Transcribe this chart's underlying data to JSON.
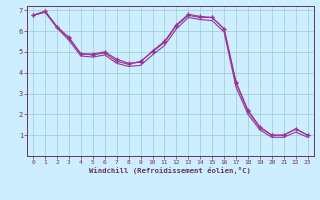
{
  "xlabel": "Windchill (Refroidissement éolien,°C)",
  "bg_color": "#cceeff",
  "line_color": "#993399",
  "grid_color": "#99cccc",
  "axis_color": "#663366",
  "spine_color": "#663366",
  "xlim": [
    -0.5,
    23.5
  ],
  "ylim": [
    0,
    7.2
  ],
  "xticks": [
    0,
    1,
    2,
    3,
    4,
    5,
    6,
    7,
    8,
    9,
    10,
    11,
    12,
    13,
    14,
    15,
    16,
    17,
    18,
    19,
    20,
    21,
    22,
    23
  ],
  "yticks": [
    1,
    2,
    3,
    4,
    5,
    6,
    7
  ],
  "line1_x": [
    0,
    1,
    2,
    3,
    4,
    5,
    6,
    7,
    8,
    9,
    10,
    11,
    12,
    13,
    14,
    15,
    16,
    17,
    18,
    19,
    20,
    21,
    22,
    23
  ],
  "line1_y": [
    6.75,
    6.95,
    6.2,
    5.65,
    4.9,
    4.85,
    4.95,
    4.55,
    4.4,
    4.55,
    5.0,
    5.45,
    6.25,
    6.75,
    6.65,
    6.65,
    6.1,
    3.55,
    2.2,
    1.4,
    1.0,
    1.0,
    1.3,
    1.0
  ],
  "line2_x": [
    0,
    1,
    2,
    3,
    4,
    5,
    6,
    7,
    8,
    9,
    10,
    11,
    12,
    13,
    14,
    15,
    16,
    17,
    18,
    19,
    20,
    21,
    22,
    23
  ],
  "line2_y": [
    6.75,
    6.95,
    6.2,
    5.7,
    4.9,
    4.9,
    5.0,
    4.65,
    4.45,
    4.5,
    5.05,
    5.5,
    6.3,
    6.8,
    6.7,
    6.65,
    6.1,
    3.5,
    2.15,
    1.35,
    1.0,
    1.0,
    1.3,
    1.0
  ],
  "line3_x": [
    0,
    1,
    2,
    3,
    4,
    5,
    6,
    7,
    8,
    9,
    10,
    11,
    12,
    13,
    14,
    15,
    16,
    17,
    18,
    19,
    20,
    21,
    22,
    23
  ],
  "line3_y": [
    6.75,
    6.9,
    6.15,
    5.55,
    4.8,
    4.75,
    4.85,
    4.45,
    4.3,
    4.35,
    4.85,
    5.3,
    6.1,
    6.65,
    6.55,
    6.5,
    5.95,
    3.3,
    2.0,
    1.25,
    0.9,
    0.9,
    1.15,
    0.9
  ]
}
